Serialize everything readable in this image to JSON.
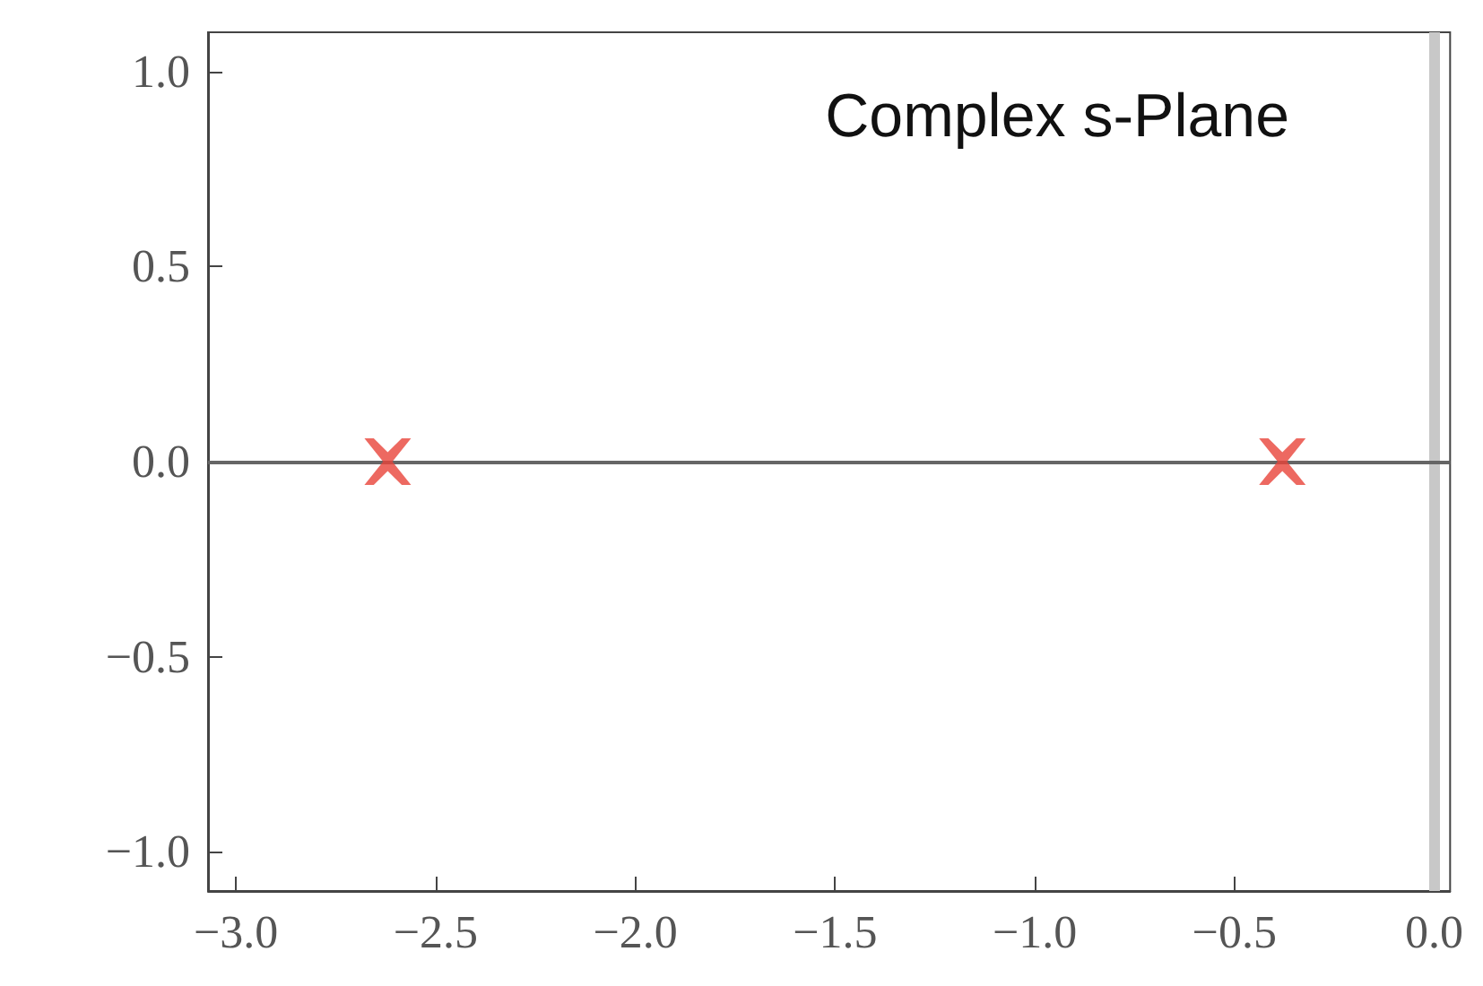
{
  "chart_data": {
    "type": "scatter",
    "x": [
      -2.62,
      -0.38
    ],
    "values": [
      0,
      0
    ],
    "color": "#e8443a",
    "marker": "cross",
    "grid": false,
    "xlim": [
      -3.07,
      0.04
    ],
    "xticks": [
      {
        "value": -3,
        "label": "−3.0"
      },
      {
        "value": -2.5,
        "label": "−2.5"
      },
      {
        "value": -2,
        "label": "−2.0"
      },
      {
        "value": -1.5,
        "label": "−1.5"
      },
      {
        "value": -1,
        "label": "−1.0"
      },
      {
        "value": -0.5,
        "label": "−0.5"
      },
      {
        "value": 0,
        "label": "0.0"
      }
    ],
    "ylim": [
      -1.1,
      1.1
    ],
    "yticks": [
      {
        "value": -1,
        "label": "−1.0"
      },
      {
        "value": -0.5,
        "label": "−0.5"
      },
      {
        "value": 0,
        "label": "0.0"
      },
      {
        "value": 0.5,
        "label": "0.5"
      },
      {
        "value": 1,
        "label": "1.0"
      }
    ],
    "ref_lines": [
      {
        "axis": "x",
        "value": 0,
        "color": "#c8c8c8"
      },
      {
        "axis": "y",
        "value": 0,
        "color": "#666666"
      }
    ],
    "annotations": [
      "Complex s-Plane"
    ]
  }
}
